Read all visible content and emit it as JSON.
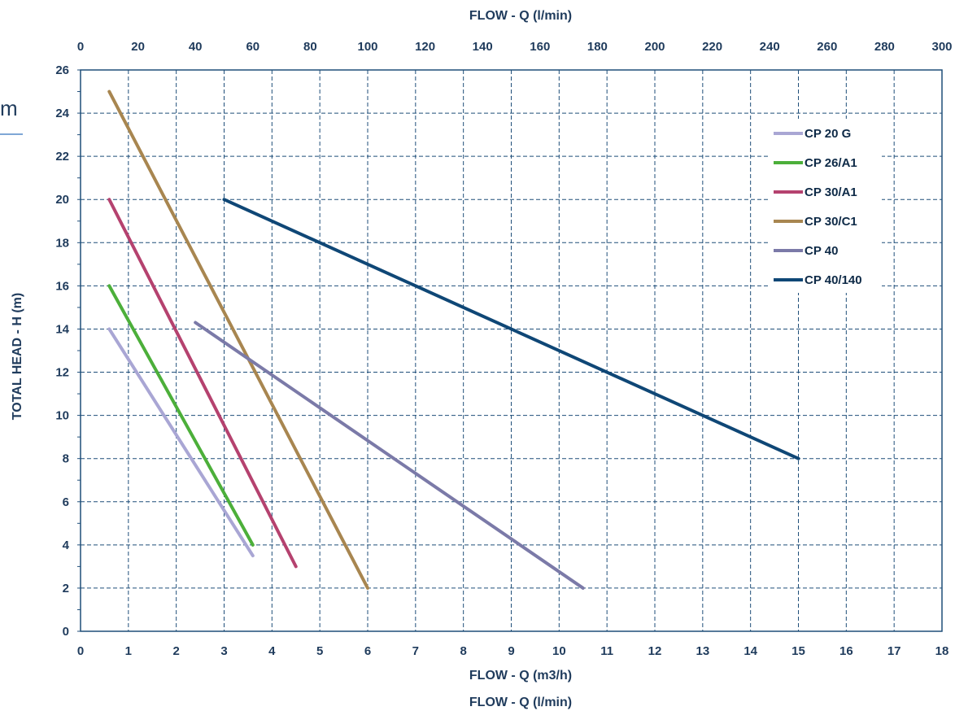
{
  "side_fragment": {
    "text": "m"
  },
  "chart_data": {
    "type": "line",
    "title": "",
    "xlabel": "FLOW - Q (m3/h)",
    "xlabel_secondary": "FLOW - Q (l/min)",
    "x2label": "FLOW - Q (l/min)",
    "ylabel": "TOTAL HEAD - H (m)",
    "xlim": [
      0,
      18
    ],
    "ylim": [
      0,
      26
    ],
    "x2lim": [
      0,
      300
    ],
    "x_ticks": [
      0,
      1,
      2,
      3,
      4,
      5,
      6,
      7,
      8,
      9,
      10,
      11,
      12,
      13,
      14,
      15,
      16,
      17,
      18
    ],
    "x2_ticks": [
      0,
      20,
      40,
      60,
      80,
      100,
      120,
      140,
      160,
      180,
      200,
      220,
      240,
      260,
      280,
      300
    ],
    "y_ticks": [
      0,
      2,
      4,
      6,
      8,
      10,
      12,
      14,
      16,
      18,
      20,
      22,
      24,
      26
    ],
    "grid": true,
    "legend_position": "top-right",
    "series": [
      {
        "name": "CP 20 G",
        "color": "#a9a6d4",
        "x": [
          0.6,
          3.6
        ],
        "y": [
          14,
          3.5
        ]
      },
      {
        "name": "CP 26/A1",
        "color": "#4caf3a",
        "x": [
          0.6,
          3.6
        ],
        "y": [
          16,
          4
        ]
      },
      {
        "name": "CP 30/A1",
        "color": "#b5426f",
        "x": [
          0.6,
          4.5
        ],
        "y": [
          20,
          3
        ]
      },
      {
        "name": "CP 30/C1",
        "color": "#a88650",
        "x": [
          0.6,
          6.0
        ],
        "y": [
          25,
          2
        ]
      },
      {
        "name": "CP 40",
        "color": "#7b7aa8",
        "x": [
          2.4,
          10.5
        ],
        "y": [
          14.3,
          2
        ]
      },
      {
        "name": "CP 40/140",
        "color": "#0f4776",
        "x": [
          3.0,
          15.0
        ],
        "y": [
          20,
          8
        ]
      }
    ]
  }
}
